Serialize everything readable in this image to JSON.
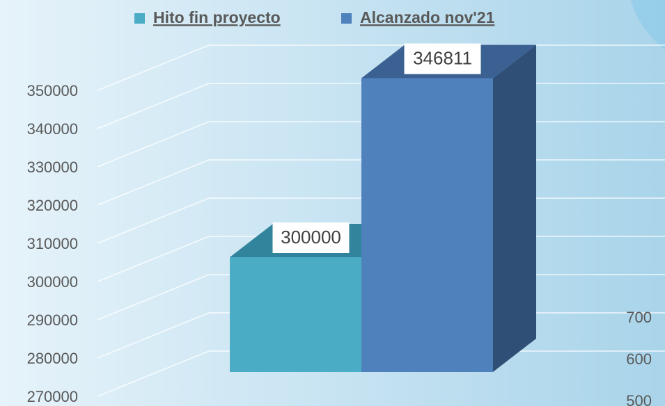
{
  "chart_data": {
    "type": "bar3d",
    "categories": [
      null
    ],
    "series": [
      {
        "name": "Hito fin proyecto",
        "color": "#4bacc6",
        "values": [
          300000
        ]
      },
      {
        "name": "Alcanzado nov'21",
        "color": "#4f81bd",
        "values": [
          346811
        ]
      }
    ],
    "ylim": [
      270000,
      350000
    ],
    "yticks": [
      270000,
      280000,
      290000,
      300000,
      310000,
      320000,
      330000,
      340000,
      350000
    ],
    "y2lim": [
      500,
      700
    ],
    "y2ticks": [
      500,
      600,
      700
    ],
    "grid": true,
    "legend": "top"
  }
}
